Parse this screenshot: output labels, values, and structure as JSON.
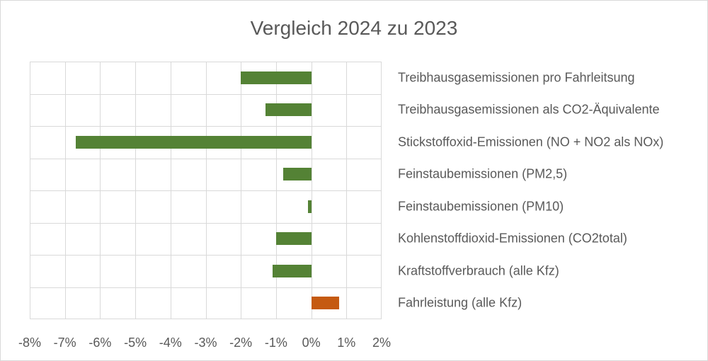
{
  "chart_data": {
    "type": "bar",
    "orientation": "horizontal",
    "title": "Vergleich 2024 zu 2023",
    "xlabel": "",
    "ylabel": "",
    "xlim": [
      -0.08,
      0.02
    ],
    "x_ticks": [
      "-8%",
      "-7%",
      "-6%",
      "-5%",
      "-4%",
      "-3%",
      "-2%",
      "-1%",
      "0%",
      "1%",
      "2%"
    ],
    "grid": true,
    "legend": null,
    "categories": [
      "Treibhausgasemissionen pro Fahrleitsung",
      "Treibhausgasemissionen als CO2-Äquivalente",
      "Stickstoffoxid-Emissionen (NO + NO2 als NOx)",
      "Feinstaubemissionen (PM2,5)",
      "Feinstaubemissionen (PM10)",
      "Kohlenstoffdioxid-Emissionen (CO2total)",
      "Kraftstoffverbrauch (alle Kfz)",
      "Fahrleistung (alle Kfz)"
    ],
    "values": [
      -2.0,
      -1.3,
      -6.7,
      -0.8,
      -0.1,
      -1.0,
      -1.1,
      0.8
    ],
    "unit": "%",
    "colors": {
      "negative": "#548235",
      "positive": "#c55a11"
    }
  },
  "title": "Vergleich 2024 zu 2023",
  "x_ticks": [
    "-8%",
    "-7%",
    "-6%",
    "-5%",
    "-4%",
    "-3%",
    "-2%",
    "-1%",
    "0%",
    "1%",
    "2%"
  ],
  "labels": [
    "Treibhausgasemissionen pro Fahrleitsung",
    "Treibhausgasemissionen als CO2-Äquivalente",
    "Stickstoffoxid-Emissionen (NO + NO2 als NOx)",
    "Feinstaubemissionen (PM2,5)",
    "Feinstaubemissionen (PM10)",
    "Kohlenstoffdioxid-Emissionen (CO2total)",
    "Kraftstoffverbrauch (alle Kfz)",
    "Fahrleistung (alle Kfz)"
  ]
}
